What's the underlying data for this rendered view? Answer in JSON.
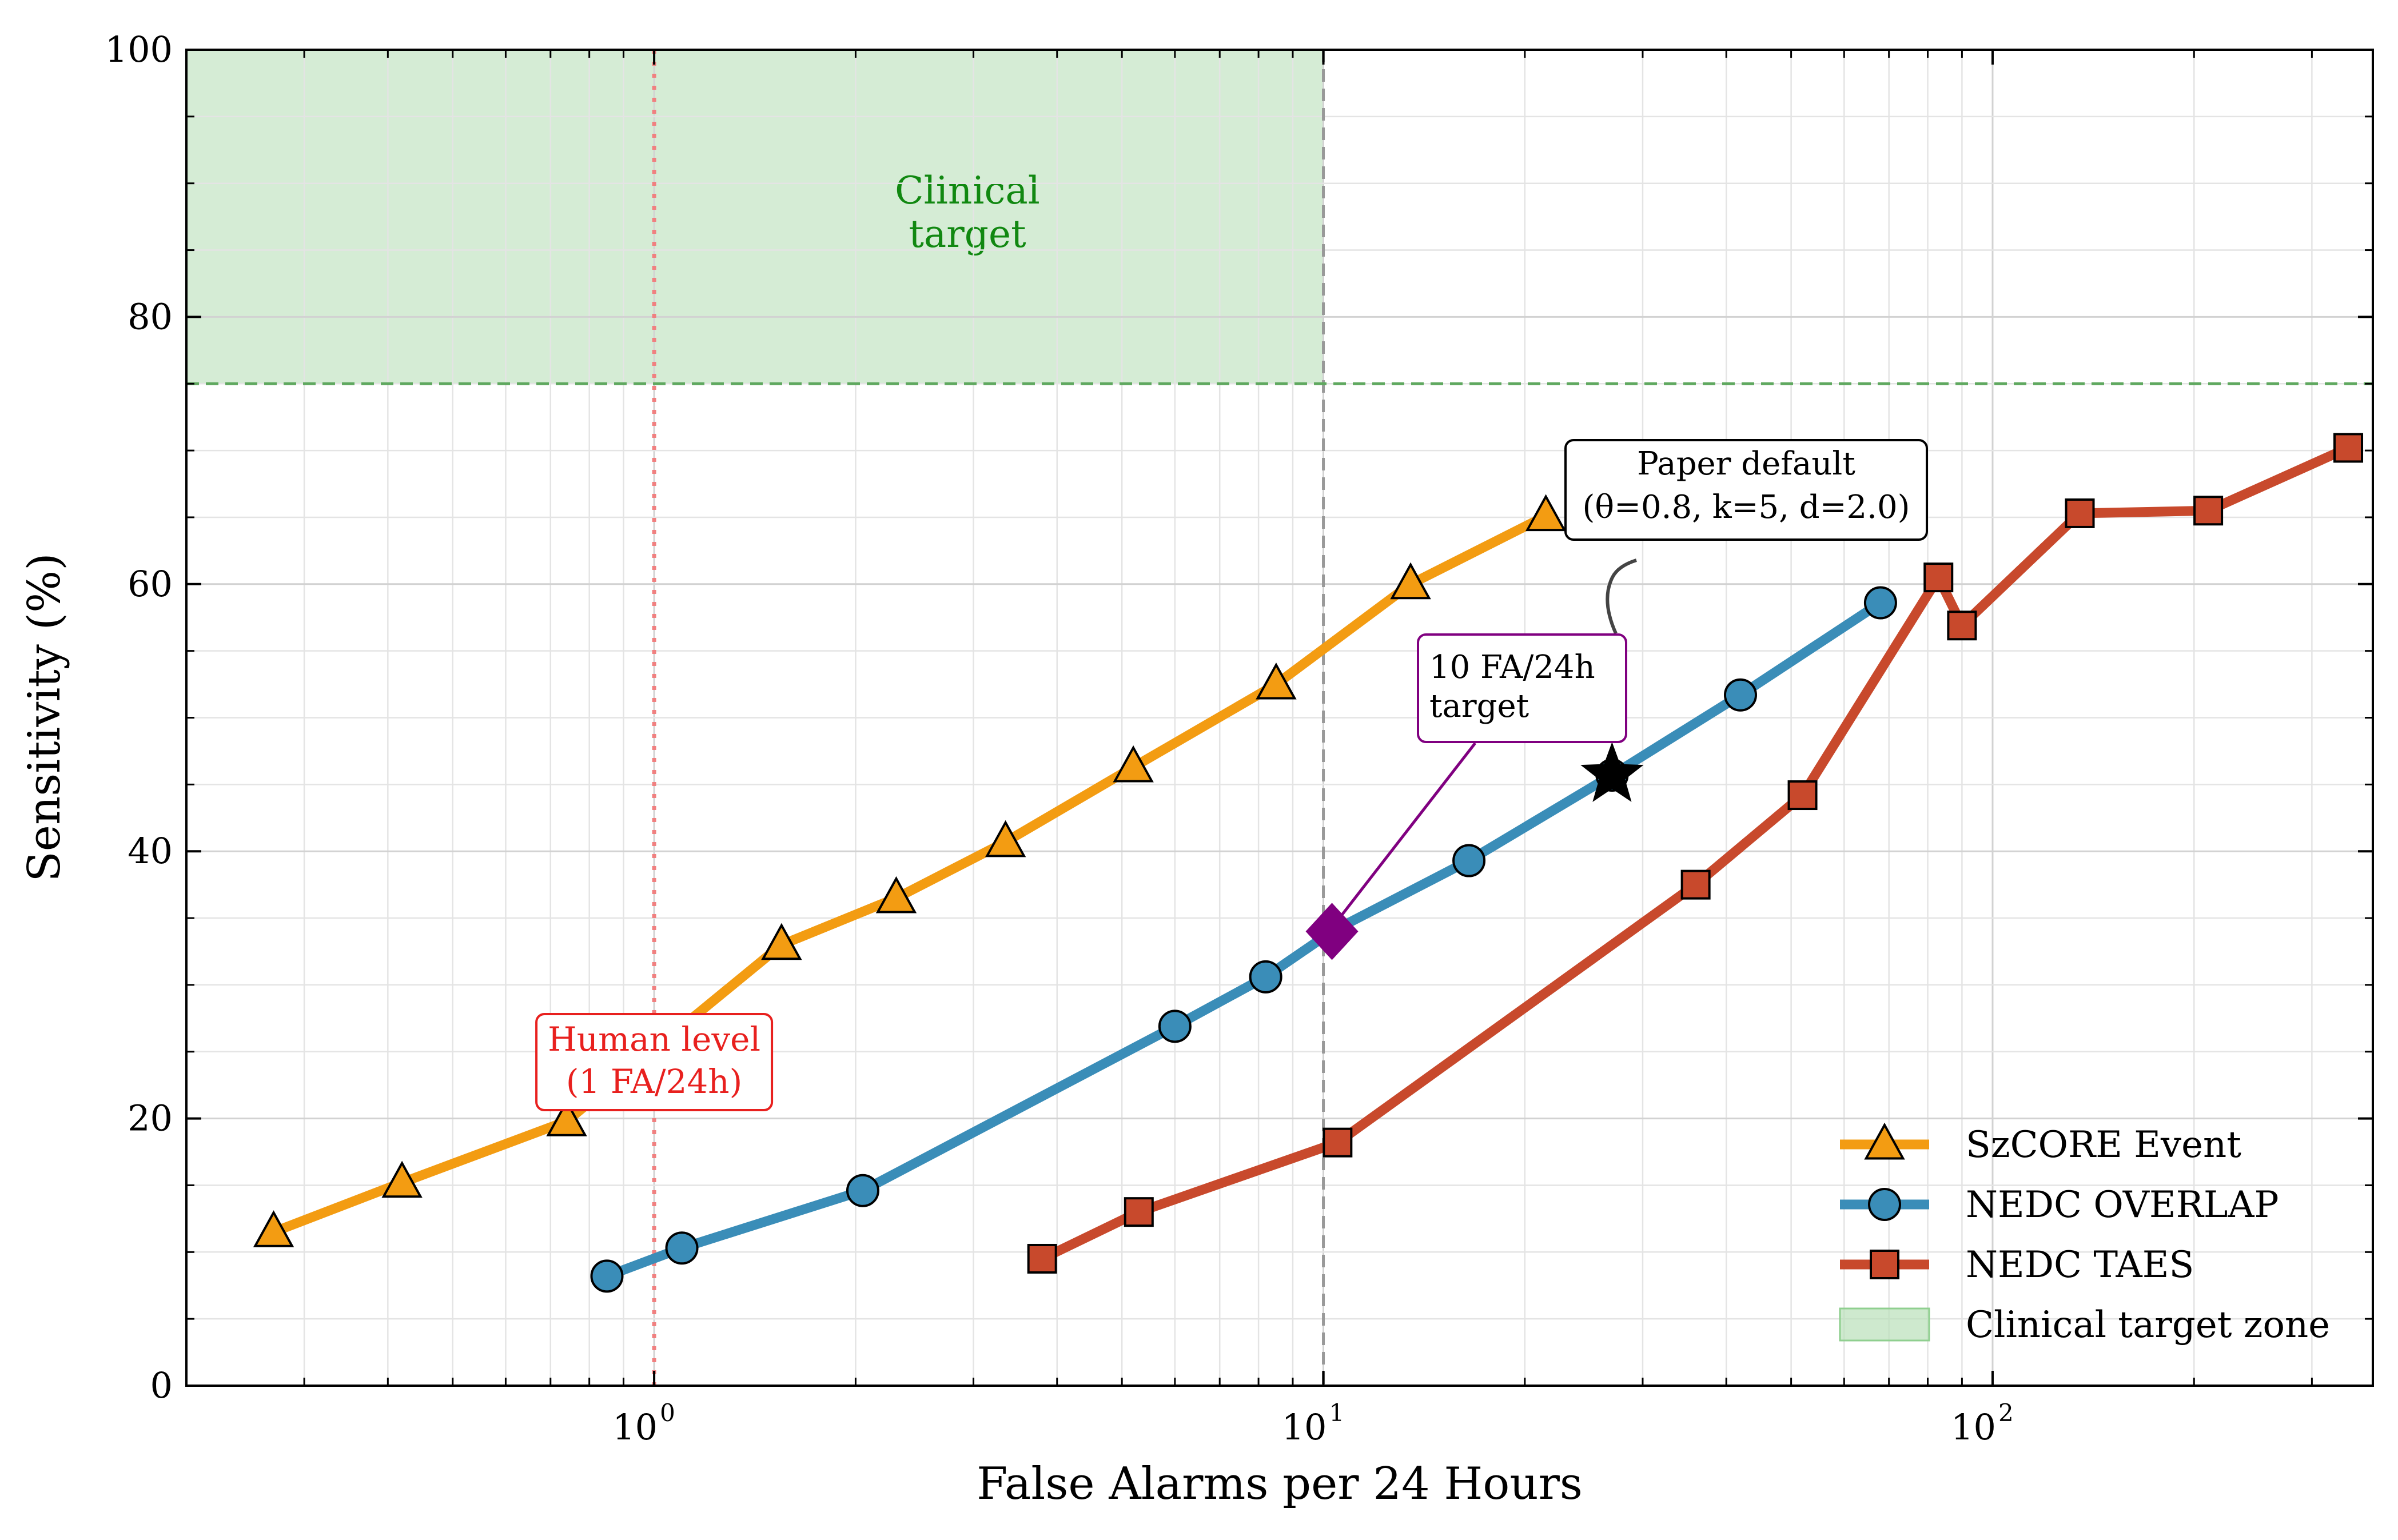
{
  "chart_data": {
    "type": "line",
    "xlabel": "False Alarms per 24 Hours",
    "ylabel": "Sensitivity (%)",
    "xscale": "log",
    "xlim": [
      0.2,
      370
    ],
    "ylim": [
      0,
      100
    ],
    "x_tick_labels": [
      {
        "value": 1,
        "base": "10",
        "exp": "0"
      },
      {
        "value": 10,
        "base": "10",
        "exp": "1"
      },
      {
        "value": 100,
        "base": "10",
        "exp": "2"
      }
    ],
    "y_ticks": [
      0,
      20,
      40,
      60,
      80,
      100
    ],
    "grid": true,
    "legend_position": "lower-right",
    "series": [
      {
        "name": "SzCORE Event",
        "color": "#f39c12",
        "marker": "triangle",
        "x": [
          0.27,
          0.42,
          0.74,
          1.55,
          2.3,
          3.35,
          5.2,
          8.5,
          13.5,
          21.5
        ],
        "y": [
          11.5,
          15.2,
          19.8,
          33.0,
          36.5,
          40.7,
          46.3,
          52.5,
          60.0,
          65.1
        ]
      },
      {
        "name": "NEDC OVERLAP",
        "color": "#3a8db8",
        "marker": "circle",
        "x": [
          0.85,
          1.1,
          2.05,
          6.0,
          8.2,
          10.3,
          16.5,
          27.0,
          42.0,
          68.0
        ],
        "y": [
          8.2,
          10.3,
          14.6,
          26.9,
          30.6,
          34.0,
          39.3,
          45.7,
          51.7,
          58.6
        ]
      },
      {
        "name": "NEDC TAES",
        "color": "#c8492c",
        "marker": "square",
        "x": [
          3.8,
          5.3,
          10.5,
          36.0,
          52.0,
          83.0,
          90.0,
          135.0,
          210.0,
          340.0
        ],
        "y": [
          9.5,
          13.0,
          18.2,
          37.5,
          44.2,
          60.5,
          56.9,
          65.3,
          65.5,
          70.2
        ]
      }
    ],
    "legend": {
      "items": [
        {
          "label": "SzCORE Event",
          "color": "#f39c12",
          "marker": "triangle"
        },
        {
          "label": "NEDC OVERLAP",
          "color": "#3a8db8",
          "marker": "circle"
        },
        {
          "label": "NEDC TAES",
          "color": "#c8492c",
          "marker": "square"
        },
        {
          "label": "Clinical target zone",
          "color": "#b9dfb9",
          "marker": "patch"
        }
      ]
    },
    "target_zone": {
      "x_max": 10,
      "y_min": 75,
      "color": "#b9dfb9",
      "label_line1": "Clinical",
      "label_line2": "target",
      "label_color": "#118811"
    },
    "reference_lines": [
      {
        "axis": "x",
        "value": 1,
        "style": "dotted",
        "color": "#f08080"
      },
      {
        "axis": "x",
        "value": 10,
        "style": "dashed",
        "color": "#999999"
      },
      {
        "axis": "y",
        "value": 75,
        "style": "dashed",
        "color": "#5fa85f"
      }
    ],
    "annotations": {
      "human": {
        "line1": "Human level",
        "line2": "(1 FA/24h)",
        "color": "#e8201e",
        "anchor_x": 1.0
      },
      "paper_default": {
        "line1": "Paper default",
        "line2": "(θ=0.8, k=5, d=2.0)",
        "point_x": 27.0,
        "point_y": 45.7,
        "marker": "star",
        "color": "#000000"
      },
      "fa_target": {
        "line1": "10 FA/24h",
        "line2": "target",
        "point_x": 10.3,
        "point_y": 34.0,
        "marker": "diamond",
        "color": "#800080"
      }
    }
  }
}
